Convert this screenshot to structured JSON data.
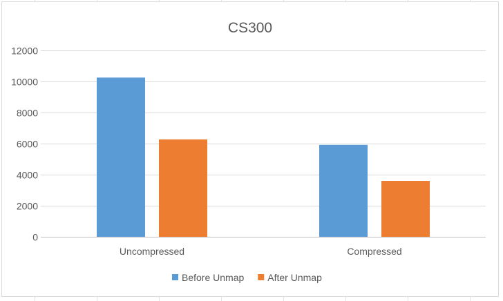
{
  "chart_data": {
    "type": "bar",
    "title": "CS300",
    "xlabel": "",
    "ylabel": "",
    "categories": [
      "Uncompressed",
      "Compressed"
    ],
    "series": [
      {
        "name": "Before Unmap",
        "values": [
          10250,
          5920
        ],
        "color": "#5b9bd5"
      },
      {
        "name": "After Unmap",
        "values": [
          6270,
          3600
        ],
        "color": "#ed7d31"
      }
    ],
    "ylim": [
      0,
      12000
    ],
    "yticks": [
      "0",
      "2000",
      "4000",
      "6000",
      "8000",
      "10000",
      "12000"
    ],
    "grid": true,
    "legend_position": "bottom"
  }
}
